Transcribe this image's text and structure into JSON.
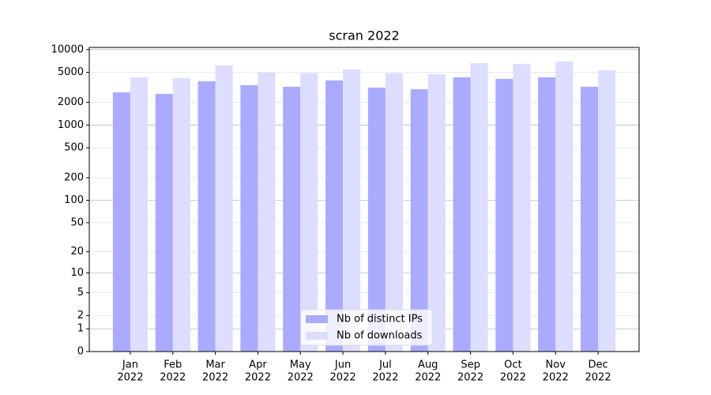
{
  "chart_data": {
    "type": "bar",
    "title": "scran 2022",
    "categories": [
      [
        "Jan",
        "2022"
      ],
      [
        "Feb",
        "2022"
      ],
      [
        "Mar",
        "2022"
      ],
      [
        "Apr",
        "2022"
      ],
      [
        "May",
        "2022"
      ],
      [
        "Jun",
        "2022"
      ],
      [
        "Jul",
        "2022"
      ],
      [
        "Aug",
        "2022"
      ],
      [
        "Sep",
        "2022"
      ],
      [
        "Oct",
        "2022"
      ],
      [
        "Nov",
        "2022"
      ],
      [
        "Dec",
        "2022"
      ]
    ],
    "series": [
      {
        "name": "Nb of distinct IPs",
        "color": "#aaaaff",
        "values": [
          2720,
          2590,
          3810,
          3380,
          3220,
          3910,
          3140,
          2990,
          4300,
          4100,
          4300,
          3220
        ]
      },
      {
        "name": "Nb of downloads",
        "color": "#ddddff",
        "values": [
          4300,
          4200,
          6180,
          4970,
          4850,
          5470,
          4850,
          4730,
          6640,
          6480,
          6970,
          5340
        ]
      }
    ],
    "ylim": [
      0,
      10700
    ],
    "yticks": [
      0,
      1,
      2,
      5,
      10,
      20,
      50,
      100,
      200,
      500,
      1000,
      2000,
      5000,
      10000
    ],
    "yscale": "log1p",
    "grid": true,
    "legend": "lower center"
  }
}
